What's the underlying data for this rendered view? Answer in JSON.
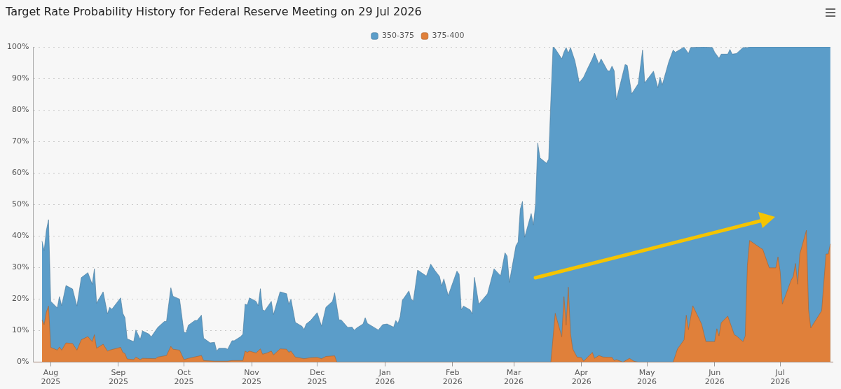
{
  "chart_data": {
    "type": "area",
    "title": "Target Rate Probability History for Federal Reserve Meeting on 29 Jul 2026",
    "xlim": [
      "2025-07-24",
      "2026-07-25"
    ],
    "xticks": [
      {
        "value": "2025-08-01",
        "label": "Aug 2025"
      },
      {
        "value": "2025-09-01",
        "label": "Sep 2025"
      },
      {
        "value": "2025-10-01",
        "label": "Oct 2025"
      },
      {
        "value": "2025-11-01",
        "label": "Nov 2025"
      },
      {
        "value": "2025-12-01",
        "label": "Dec 2025"
      },
      {
        "value": "2026-01-01",
        "label": "Jan 2026"
      },
      {
        "value": "2026-02-01",
        "label": "Feb 2026"
      },
      {
        "value": "2026-03-01",
        "label": "Mar 2026"
      },
      {
        "value": "2026-04-01",
        "label": "Apr 2026"
      },
      {
        "value": "2026-05-01",
        "label": "May 2026"
      },
      {
        "value": "2026-06-01",
        "label": "Jun 2026"
      },
      {
        "value": "2026-07-01",
        "label": "Jul 2026"
      }
    ],
    "ylim": [
      0,
      100
    ],
    "yticks": [
      {
        "value": 0,
        "label": "0%"
      },
      {
        "value": 10,
        "label": "10%"
      },
      {
        "value": 20,
        "label": "20%"
      },
      {
        "value": 30,
        "label": "30%"
      },
      {
        "value": 40,
        "label": "40%"
      },
      {
        "value": 50,
        "label": "50%"
      },
      {
        "value": 60,
        "label": "60%"
      },
      {
        "value": 70,
        "label": "70%"
      },
      {
        "value": 80,
        "label": "80%"
      },
      {
        "value": 90,
        "label": "90%"
      },
      {
        "value": 100,
        "label": "100%"
      }
    ],
    "grid": "y",
    "legend": "top",
    "series": [
      {
        "name": "350-375",
        "color": "#5b9dc9",
        "x": [
          "2025-07-28",
          "2025-07-29",
          "2025-07-30",
          "2025-07-31",
          "2025-08-01",
          "2025-08-04",
          "2025-08-05",
          "2025-08-06",
          "2025-08-08",
          "2025-08-11",
          "2025-08-13",
          "2025-08-15",
          "2025-08-18",
          "2025-08-20",
          "2025-08-21",
          "2025-08-22",
          "2025-08-25",
          "2025-08-27",
          "2025-08-28",
          "2025-08-29",
          "2025-09-02",
          "2025-09-03",
          "2025-09-04",
          "2025-09-05",
          "2025-09-08",
          "2025-09-09",
          "2025-09-11",
          "2025-09-12",
          "2025-09-15",
          "2025-09-16",
          "2025-09-19",
          "2025-09-22",
          "2025-09-23",
          "2025-09-25",
          "2025-09-26",
          "2025-09-29",
          "2025-10-01",
          "2025-10-02",
          "2025-10-03",
          "2025-10-06",
          "2025-10-07",
          "2025-10-09",
          "2025-10-10",
          "2025-10-13",
          "2025-10-15",
          "2025-10-16",
          "2025-10-17",
          "2025-10-20",
          "2025-10-21",
          "2025-10-23",
          "2025-10-24",
          "2025-10-27",
          "2025-10-28",
          "2025-10-29",
          "2025-10-30",
          "2025-10-31",
          "2025-11-03",
          "2025-11-04",
          "2025-11-05",
          "2025-11-06",
          "2025-11-07",
          "2025-11-10",
          "2025-11-11",
          "2025-11-14",
          "2025-11-17",
          "2025-11-18",
          "2025-11-19",
          "2025-11-21",
          "2025-11-24",
          "2025-11-25",
          "2025-11-26",
          "2025-11-28",
          "2025-12-01",
          "2025-12-03",
          "2025-12-05",
          "2025-12-08",
          "2025-12-09",
          "2025-12-11",
          "2025-12-12",
          "2025-12-15",
          "2025-12-17",
          "2025-12-18",
          "2025-12-19",
          "2025-12-22",
          "2025-12-23",
          "2025-12-24",
          "2025-12-29",
          "2025-12-31",
          "2026-01-02",
          "2026-01-05",
          "2026-01-06",
          "2026-01-07",
          "2026-01-08",
          "2026-01-09",
          "2026-01-12",
          "2026-01-13",
          "2026-01-14",
          "2026-01-16",
          "2026-01-20",
          "2026-01-22",
          "2026-01-24",
          "2026-01-26",
          "2026-01-27",
          "2026-01-28",
          "2026-01-30",
          "2026-02-03",
          "2026-02-04",
          "2026-02-05",
          "2026-02-06",
          "2026-02-09",
          "2026-02-10",
          "2026-02-11",
          "2026-02-13",
          "2026-02-17",
          "2026-02-20",
          "2026-02-23",
          "2026-02-25",
          "2026-02-26",
          "2026-02-27",
          "2026-03-02",
          "2026-03-03",
          "2026-03-04",
          "2026-03-05",
          "2026-03-06",
          "2026-03-09",
          "2026-03-10",
          "2026-03-11",
          "2026-03-12",
          "2026-03-13",
          "2026-03-16",
          "2026-03-17",
          "2026-03-18",
          "2026-03-19",
          "2026-03-20",
          "2026-03-23",
          "2026-03-24",
          "2026-03-25",
          "2026-03-26",
          "2026-03-27",
          "2026-03-29",
          "2026-03-30",
          "2026-03-31",
          "2026-04-02",
          "2026-04-04",
          "2026-04-06",
          "2026-04-07",
          "2026-04-09",
          "2026-04-10",
          "2026-04-13",
          "2026-04-14",
          "2026-04-15",
          "2026-04-16",
          "2026-04-17",
          "2026-04-21",
          "2026-04-22",
          "2026-04-24",
          "2026-04-27",
          "2026-04-29",
          "2026-04-30",
          "2026-05-04",
          "2026-05-06",
          "2026-05-07",
          "2026-05-08",
          "2026-05-11",
          "2026-05-13",
          "2026-05-14",
          "2026-05-18",
          "2026-05-20",
          "2026-05-21",
          "2026-05-27",
          "2026-05-31",
          "2026-06-01",
          "2026-06-03",
          "2026-06-04",
          "2026-06-07",
          "2026-06-08",
          "2026-06-09",
          "2026-06-11",
          "2026-06-14",
          "2026-06-16",
          "2026-06-17",
          "2026-07-24"
        ],
        "values": [
          38.4,
          35.4,
          41.8,
          45.2,
          19.3,
          17.2,
          20.8,
          17.9,
          24.3,
          23.2,
          17.8,
          26.8,
          28.4,
          24.7,
          29.6,
          18.7,
          22.3,
          15.3,
          17.4,
          16.8,
          20.4,
          15.5,
          14.1,
          7.4,
          6.5,
          10.2,
          7.2,
          9.9,
          8.9,
          8.0,
          11.0,
          12.9,
          12.9,
          23.6,
          20.9,
          20.0,
          9.5,
          9.3,
          11.7,
          13.2,
          13.2,
          14.9,
          7.6,
          6.1,
          6.3,
          3.5,
          4.4,
          4.4,
          4.1,
          6.8,
          6.8,
          8.1,
          8.9,
          18.4,
          18.1,
          20.4,
          19.3,
          17.9,
          23.3,
          16.6,
          16.3,
          19.3,
          15.1,
          22.3,
          21.7,
          18.4,
          20.0,
          12.6,
          11.4,
          10.4,
          12.1,
          13.2,
          15.7,
          11.4,
          17.4,
          19.3,
          22.0,
          13.4,
          13.4,
          11.0,
          11.1,
          10.1,
          10.8,
          12.1,
          14.1,
          12.3,
          10.2,
          11.9,
          12.1,
          11.1,
          13.2,
          12.3,
          14.4,
          19.6,
          22.6,
          20.0,
          19.4,
          29.2,
          27.3,
          31.1,
          29.0,
          27.2,
          24.2,
          26.4,
          21.1,
          28.9,
          27.9,
          16.6,
          17.8,
          16.6,
          15.3,
          26.9,
          18.4,
          21.7,
          29.6,
          27.4,
          34.7,
          33.6,
          25.3,
          36.9,
          38.1,
          48.5,
          51.0,
          39.6,
          47.1,
          43.5,
          50.1,
          69.5,
          64.8,
          63.1,
          64.4,
          83.2,
          100,
          99.4,
          96.2,
          98.3,
          99.8,
          98.0,
          99.8,
          95.6,
          92.3,
          88.6,
          90.4,
          93.4,
          96.2,
          98.0,
          94.5,
          96.2,
          92.4,
          92.4,
          93.9,
          92.4,
          83.2,
          94.4,
          94.1,
          85.1,
          88.3,
          99.0,
          88.6,
          92.3,
          87.0,
          90.4,
          87.9,
          95.3,
          99.0,
          98.3,
          99.9,
          97.9,
          99.8,
          100,
          99.8,
          98.3,
          96.4,
          97.7,
          97.7,
          99.2,
          97.7,
          97.9,
          99.8,
          99.8,
          100,
          100
        ]
      },
      {
        "name": "375-400",
        "color": "#e0803a",
        "x": [
          "2025-07-28",
          "2025-07-29",
          "2025-07-30",
          "2025-07-31",
          "2025-08-01",
          "2025-08-04",
          "2025-08-05",
          "2025-08-06",
          "2025-08-08",
          "2025-08-11",
          "2025-08-13",
          "2025-08-15",
          "2025-08-18",
          "2025-08-20",
          "2025-08-21",
          "2025-08-22",
          "2025-08-25",
          "2025-08-27",
          "2025-08-28",
          "2025-09-02",
          "2025-09-03",
          "2025-09-04",
          "2025-09-05",
          "2025-09-08",
          "2025-09-09",
          "2025-09-11",
          "2025-09-12",
          "2025-09-18",
          "2025-09-19",
          "2025-09-23",
          "2025-09-25",
          "2025-09-26",
          "2025-09-29",
          "2025-10-01",
          "2025-10-03",
          "2025-10-07",
          "2025-10-09",
          "2025-10-10",
          "2025-10-15",
          "2025-10-21",
          "2025-10-23",
          "2025-10-27",
          "2025-10-28",
          "2025-10-29",
          "2025-10-30",
          "2025-10-31",
          "2025-11-03",
          "2025-11-05",
          "2025-11-06",
          "2025-11-08",
          "2025-11-10",
          "2025-11-11",
          "2025-11-14",
          "2025-11-17",
          "2025-11-18",
          "2025-11-19",
          "2025-11-21",
          "2025-11-25",
          "2025-11-28",
          "2025-12-01",
          "2025-12-03",
          "2025-12-05",
          "2025-12-09",
          "2025-12-10",
          "2026-03-18",
          "2026-03-20",
          "2026-03-23",
          "2026-03-24",
          "2026-03-25",
          "2026-03-26",
          "2026-03-27",
          "2026-03-28",
          "2026-03-30",
          "2026-04-01",
          "2026-04-02",
          "2026-04-06",
          "2026-04-07",
          "2026-04-09",
          "2026-04-11",
          "2026-04-15",
          "2026-04-16",
          "2026-04-17",
          "2026-04-20",
          "2026-04-23",
          "2026-04-25",
          "2026-04-27",
          "2026-05-13",
          "2026-05-15",
          "2026-05-18",
          "2026-05-19",
          "2026-05-20",
          "2026-05-22",
          "2026-05-26",
          "2026-05-28",
          "2026-06-01",
          "2026-06-02",
          "2026-06-03",
          "2026-06-04",
          "2026-06-07",
          "2026-06-10",
          "2026-06-11",
          "2026-06-14",
          "2026-06-15",
          "2026-06-16",
          "2026-06-17",
          "2026-06-22",
          "2026-06-23",
          "2026-06-26",
          "2026-06-29",
          "2026-06-30",
          "2026-07-01",
          "2026-07-02",
          "2026-07-06",
          "2026-07-07",
          "2026-07-08",
          "2026-07-09",
          "2026-07-10",
          "2026-07-13",
          "2026-07-14",
          "2026-07-15",
          "2026-07-20",
          "2026-07-22",
          "2026-07-23",
          "2026-07-24"
        ],
        "values": [
          13.4,
          11.9,
          15.9,
          17.8,
          4.7,
          3.8,
          4.8,
          3.8,
          6.1,
          5.9,
          3.8,
          7.1,
          8.1,
          6.5,
          8.7,
          4.4,
          5.7,
          3.5,
          3.8,
          4.7,
          3.1,
          2.7,
          1.0,
          0.8,
          1.6,
          0.8,
          1.2,
          1.1,
          1.6,
          2.1,
          5.0,
          4.1,
          3.8,
          0.8,
          1.2,
          1.8,
          2.1,
          0.5,
          0.3,
          0.3,
          0.5,
          0.5,
          0.5,
          3.5,
          3.1,
          3.5,
          2.9,
          4.2,
          2.5,
          2.9,
          3.5,
          2.3,
          4.2,
          4.1,
          3.1,
          3.5,
          1.6,
          1.1,
          1.4,
          1.5,
          1.1,
          1.8,
          2.0,
          0,
          0,
          15.5,
          8.0,
          20.8,
          11.7,
          23.8,
          9.1,
          4.2,
          1.6,
          1.4,
          0.3,
          3.1,
          1.2,
          2.1,
          1.6,
          1.5,
          0.5,
          0.8,
          0,
          1.2,
          0.3,
          0,
          0,
          4.2,
          7.1,
          14.9,
          10.3,
          17.9,
          12.1,
          6.5,
          6.5,
          10.6,
          8.3,
          12.5,
          14.6,
          8.7,
          8.3,
          6.5,
          8.3,
          30.7,
          38.6,
          36.2,
          35.8,
          29.9,
          29.9,
          33.4,
          28.7,
          18.4,
          26.0,
          27.2,
          31.3,
          24.7,
          34.3,
          41.8,
          16.6,
          10.8,
          16.3,
          34.3,
          34.3,
          37.5
        ]
      }
    ]
  }
}
